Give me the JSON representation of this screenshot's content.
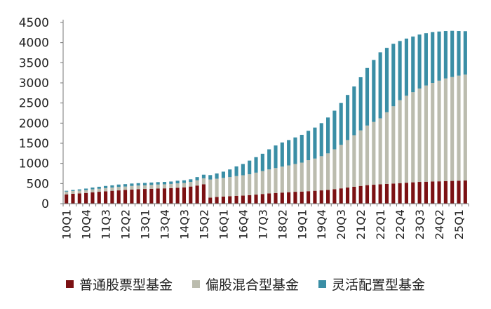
{
  "chart_data": {
    "type": "bar",
    "stacked": true,
    "title": "",
    "xlabel": "",
    "ylabel": "",
    "ylim": [
      0,
      4500
    ],
    "yticks": [
      0,
      500,
      1000,
      1500,
      2000,
      2500,
      3000,
      3500,
      4000,
      4500
    ],
    "x_tick_labels": [
      "10Q1",
      "10Q4",
      "11Q3",
      "12Q2",
      "13Q1",
      "13Q4",
      "14Q3",
      "15Q2",
      "16Q1",
      "16Q4",
      "17Q3",
      "18Q2",
      "19Q1",
      "19Q4",
      "20Q3",
      "21Q2",
      "22Q1",
      "22Q4",
      "23Q3",
      "24Q2",
      "25Q1"
    ],
    "categories": [
      "10Q1",
      "10Q2",
      "10Q3",
      "10Q4",
      "11Q1",
      "11Q2",
      "11Q3",
      "11Q4",
      "12Q1",
      "12Q2",
      "12Q3",
      "12Q4",
      "13Q1",
      "13Q2",
      "13Q3",
      "13Q4",
      "14Q1",
      "14Q2",
      "14Q3",
      "14Q4",
      "15Q1",
      "15Q2",
      "15Q3",
      "15Q4",
      "16Q1",
      "16Q2",
      "16Q3",
      "16Q4",
      "17Q1",
      "17Q2",
      "17Q3",
      "17Q4",
      "18Q1",
      "18Q2",
      "18Q3",
      "18Q4",
      "19Q1",
      "19Q2",
      "19Q3",
      "19Q4",
      "20Q1",
      "20Q2",
      "20Q3",
      "20Q4",
      "21Q1",
      "21Q2",
      "21Q3",
      "21Q4",
      "22Q1",
      "22Q2",
      "22Q3",
      "22Q4",
      "23Q1",
      "23Q2",
      "23Q3",
      "23Q4",
      "24Q1",
      "24Q2",
      "24Q3",
      "24Q4",
      "25Q1",
      "25Q2"
    ],
    "series": [
      {
        "name": "普通股票型基金",
        "color": "#7b1113",
        "values": [
          230,
          245,
          255,
          265,
          280,
          295,
          305,
          320,
          330,
          340,
          350,
          360,
          365,
          370,
          375,
          380,
          385,
          395,
          405,
          425,
          450,
          480,
          150,
          165,
          175,
          185,
          195,
          200,
          210,
          225,
          240,
          255,
          265,
          275,
          285,
          295,
          300,
          310,
          320,
          330,
          340,
          360,
          380,
          400,
          420,
          440,
          460,
          470,
          480,
          490,
          500,
          510,
          520,
          530,
          540,
          545,
          550,
          555,
          560,
          565,
          570,
          575
        ]
      },
      {
        "name": "偏股混合型基金",
        "color": "#bbbcae",
        "values": [
          70,
          70,
          70,
          70,
          75,
          75,
          80,
          80,
          85,
          85,
          90,
          90,
          90,
          95,
          100,
          100,
          105,
          110,
          110,
          115,
          130,
          150,
          450,
          455,
          465,
          475,
          490,
          505,
          520,
          545,
          570,
          595,
          620,
          645,
          665,
          690,
          720,
          770,
          800,
          850,
          910,
          990,
          1080,
          1180,
          1280,
          1380,
          1480,
          1560,
          1640,
          1780,
          1920,
          2060,
          2160,
          2240,
          2320,
          2390,
          2450,
          2500,
          2550,
          2580,
          2610,
          2630
        ]
      },
      {
        "name": "灵活配置型基金",
        "color": "#3a8ea5",
        "values": [
          20,
          25,
          30,
          40,
          45,
          50,
          55,
          55,
          60,
          60,
          60,
          60,
          60,
          60,
          60,
          60,
          60,
          65,
          65,
          65,
          80,
          90,
          110,
          130,
          155,
          190,
          240,
          280,
          340,
          385,
          430,
          500,
          560,
          600,
          630,
          660,
          690,
          730,
          770,
          820,
          890,
          960,
          1040,
          1120,
          1210,
          1320,
          1430,
          1540,
          1640,
          1600,
          1550,
          1470,
          1420,
          1380,
          1340,
          1300,
          1260,
          1220,
          1180,
          1150,
          1110,
          1080
        ]
      }
    ]
  },
  "legend": [
    {
      "label": "普通股票型基金",
      "color": "#7b1113"
    },
    {
      "label": "偏股混合型基金",
      "color": "#bbbcae"
    },
    {
      "label": "灵活配置型基金",
      "color": "#3a8ea5"
    }
  ]
}
